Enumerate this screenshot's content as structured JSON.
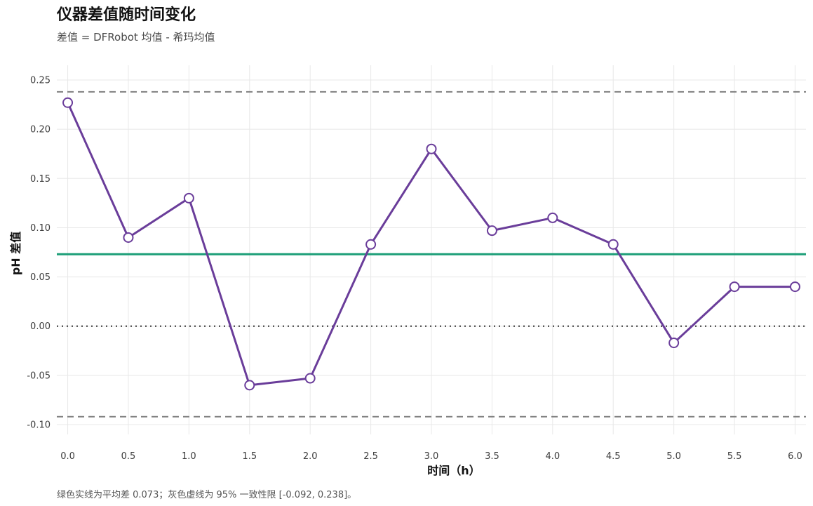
{
  "title": "仪器差值随时间变化",
  "subtitle": "差值 = DFRobot 均值 - 希玛均值",
  "caption": "绿色实线为平均差 0.073；灰色虚线为 95% 一致性限 [-0.092, 0.238]。",
  "chart_data": {
    "type": "line",
    "title": "仪器差值随时间变化",
    "subtitle": "差值 = DFRobot 均值 - 希玛均值",
    "xlabel": "时间（h）",
    "ylabel": "pH 差值",
    "x": [
      0.0,
      0.5,
      1.0,
      1.5,
      2.0,
      2.5,
      3.0,
      3.5,
      4.0,
      4.5,
      5.0,
      5.5,
      6.0
    ],
    "y": [
      0.227,
      0.09,
      0.13,
      -0.06,
      -0.053,
      0.083,
      0.18,
      0.097,
      0.11,
      0.083,
      -0.017,
      0.04,
      0.04
    ],
    "xlim": [
      -0.09,
      6.09
    ],
    "ylim": [
      -0.11,
      0.265
    ],
    "x_ticks": [
      0.0,
      0.5,
      1.0,
      1.5,
      2.0,
      2.5,
      3.0,
      3.5,
      4.0,
      4.5,
      5.0,
      5.5,
      6.0
    ],
    "x_tick_labels": [
      "0.0",
      "0.5",
      "1.0",
      "1.5",
      "2.0",
      "2.5",
      "3.0",
      "3.5",
      "4.0",
      "4.5",
      "5.0",
      "5.5",
      "6.0"
    ],
    "y_ticks": [
      -0.1,
      -0.05,
      0.0,
      0.05,
      0.1,
      0.15,
      0.2,
      0.25
    ],
    "y_tick_labels": [
      "-0.10",
      "-0.05",
      "0.00",
      "0.05",
      "0.10",
      "0.15",
      "0.20",
      "0.25"
    ],
    "reference_lines": {
      "mean_difference": 0.073,
      "limits_of_agreement": [
        -0.092,
        0.238
      ],
      "zero": 0.0
    },
    "grid": true,
    "legend": "none",
    "colors": {
      "series": "#6a3d9a",
      "mean_line": "#1b9e77",
      "limit_lines": "#808080",
      "zero_line": "#333333",
      "grid": "#e8e8e8"
    }
  }
}
